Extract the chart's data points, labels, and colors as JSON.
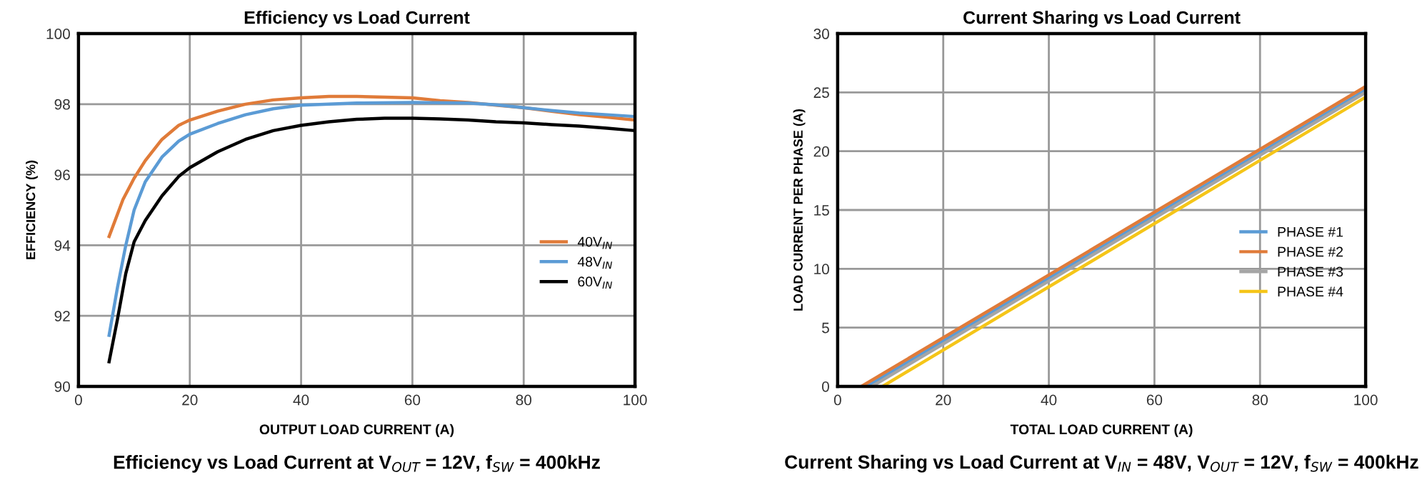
{
  "chart_data": [
    {
      "type": "line",
      "title": "Efficiency vs Load Current",
      "xlabel": "OUTPUT LOAD CURRENT (A)",
      "ylabel": "EFFICIENCY (%)",
      "xlim": [
        0,
        100
      ],
      "xticks": [
        0,
        20,
        40,
        60,
        80,
        100
      ],
      "ylim": [
        90,
        100
      ],
      "yticks": [
        90,
        92,
        94,
        96,
        98,
        100
      ],
      "grid": true,
      "legend": "right",
      "annotations": [
        "Efficiency vs Load Current at V$_{OUT}$ = 12V, f$_{SW}$ = 400kHz"
      ],
      "series": [
        {
          "name": "40V$_{IN}$",
          "color": "#e07b39",
          "x": [
            5.5,
            8,
            10,
            12,
            15,
            18,
            20,
            25,
            30,
            35,
            40,
            45,
            50,
            55,
            60,
            65,
            70,
            75,
            80,
            85,
            90,
            95,
            100
          ],
          "values": [
            94.25,
            95.3,
            95.9,
            96.4,
            97.0,
            97.4,
            97.55,
            97.8,
            98.0,
            98.12,
            98.18,
            98.22,
            98.22,
            98.2,
            98.18,
            98.1,
            98.05,
            97.97,
            97.9,
            97.8,
            97.7,
            97.63,
            97.55
          ]
        },
        {
          "name": "48V$_{IN}$",
          "color": "#5b9bd5",
          "x": [
            5.5,
            7,
            8.5,
            10,
            12,
            15,
            18,
            20,
            25,
            30,
            35,
            40,
            50,
            60,
            70,
            75,
            80,
            85,
            90,
            95,
            100
          ],
          "values": [
            91.45,
            92.8,
            94.0,
            95.0,
            95.8,
            96.5,
            96.95,
            97.15,
            97.45,
            97.7,
            97.87,
            97.97,
            98.03,
            98.05,
            98.03,
            97.98,
            97.9,
            97.82,
            97.75,
            97.7,
            97.65
          ]
        },
        {
          "name": "60V$_{IN}$",
          "color": "#000000",
          "x": [
            5.5,
            7,
            8.5,
            10,
            12,
            15,
            18,
            20,
            25,
            30,
            35,
            40,
            45,
            50,
            55,
            60,
            65,
            70,
            75,
            80,
            85,
            90,
            95,
            100
          ],
          "values": [
            90.7,
            91.9,
            93.2,
            94.1,
            94.7,
            95.4,
            95.95,
            96.2,
            96.65,
            97.0,
            97.25,
            97.4,
            97.5,
            97.57,
            97.6,
            97.6,
            97.58,
            97.55,
            97.5,
            97.47,
            97.42,
            97.38,
            97.32,
            97.25
          ]
        }
      ]
    },
    {
      "type": "line",
      "title": "Current Sharing vs Load Current",
      "xlabel": "TOTAL LOAD CURRENT (A)",
      "ylabel": "LOAD CURRENT PER PHASE (A)",
      "xlim": [
        0,
        100
      ],
      "xticks": [
        0,
        20,
        40,
        60,
        80,
        100
      ],
      "ylim": [
        0,
        30
      ],
      "yticks": [
        0,
        5,
        10,
        15,
        20,
        25,
        30
      ],
      "grid": true,
      "legend": "right",
      "annotations": [
        "Current Sharing vs Load Current at V$_{IN}$ = 48V, V$_{OUT}$ = 12V, f$_{SW}$ = 400kHz"
      ],
      "series": [
        {
          "name": "PHASE #1",
          "color": "#5b9bd5",
          "x": [
            5.5,
            100
          ],
          "values": [
            0,
            25.2
          ]
        },
        {
          "name": "PHASE #2",
          "color": "#e07b39",
          "x": [
            4.5,
            100
          ],
          "values": [
            0,
            25.5
          ]
        },
        {
          "name": "PHASE #3",
          "color": "#a5a5a5",
          "x": [
            6.5,
            100
          ],
          "values": [
            0,
            25.0
          ]
        },
        {
          "name": "PHASE #4",
          "color": "#f5c518",
          "x": [
            8.5,
            100
          ],
          "values": [
            0,
            24.6
          ]
        }
      ]
    }
  ]
}
